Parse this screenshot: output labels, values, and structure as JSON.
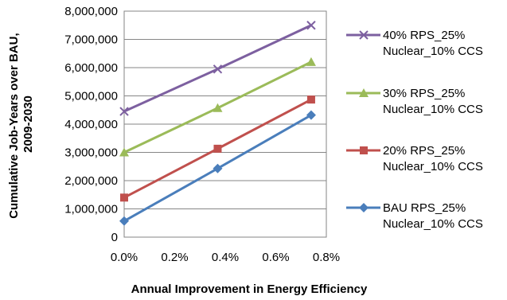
{
  "chart_data": {
    "type": "line",
    "title": "",
    "xlabel": "Annual Improvement in Energy Efficiency",
    "ylabel_lines": [
      "Cumulative Job-Years over BAU,",
      "2009-2030"
    ],
    "x": [
      0.0,
      0.37,
      0.74
    ],
    "xlim": [
      0.0,
      0.8
    ],
    "ylim": [
      0,
      8000000
    ],
    "x_ticks": [
      "0.0%",
      "0.2%",
      "0.4%",
      "0.6%",
      "0.8%"
    ],
    "y_ticks": [
      "0",
      "1,000,000",
      "2,000,000",
      "3,000,000",
      "4,000,000",
      "5,000,000",
      "6,000,000",
      "7,000,000",
      "8,000,000"
    ],
    "grid": "horizontal",
    "legend_position": "right",
    "series": [
      {
        "name_lines": [
          "40% RPS_25%",
          "Nuclear_10%  CCS"
        ],
        "color": "#7D60A0",
        "marker": "x",
        "values": [
          4450000,
          5950000,
          7500000
        ]
      },
      {
        "name_lines": [
          "30% RPS_25%",
          "Nuclear_10%  CCS"
        ],
        "color": "#9BBB59",
        "marker": "triangle",
        "values": [
          3000000,
          4570000,
          6200000
        ]
      },
      {
        "name_lines": [
          "20% RPS_25%",
          "Nuclear_10%  CCS"
        ],
        "color": "#C0504D",
        "marker": "square",
        "values": [
          1400000,
          3130000,
          4870000
        ]
      },
      {
        "name_lines": [
          "BAU RPS_25%",
          "Nuclear_10%  CCS"
        ],
        "color": "#4A7EBB",
        "marker": "diamond",
        "values": [
          570000,
          2430000,
          4320000
        ]
      }
    ]
  }
}
